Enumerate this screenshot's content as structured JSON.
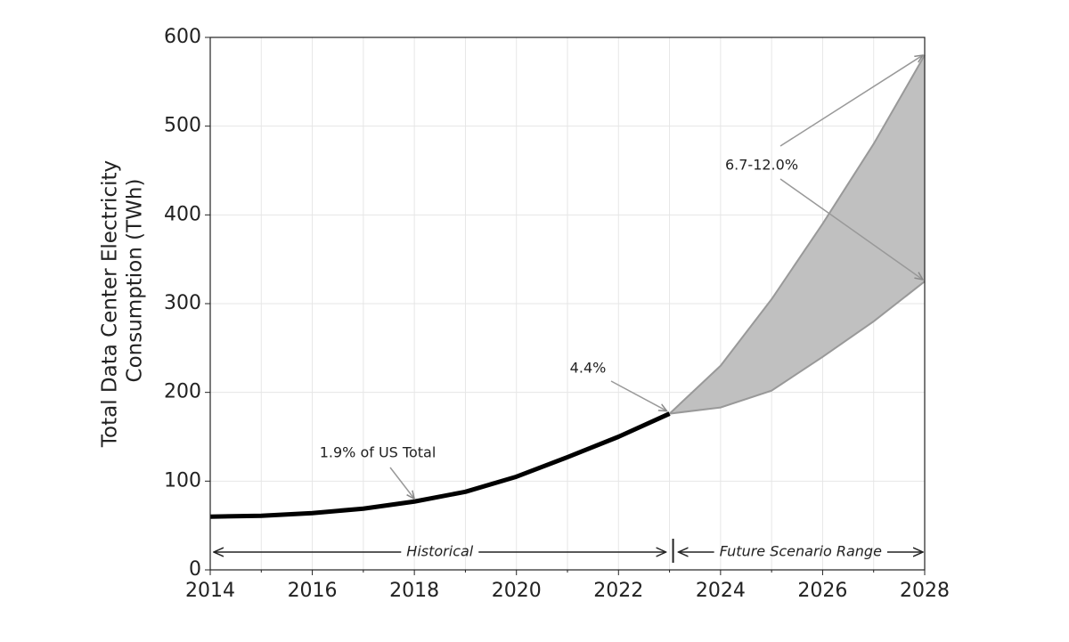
{
  "chart_data": {
    "type": "line",
    "ylabel": [
      "Total Data Center Electricity",
      "Consumption (TWh)"
    ],
    "x": [
      2014,
      2015,
      2016,
      2017,
      2018,
      2019,
      2020,
      2021,
      2022,
      2023,
      2024,
      2025,
      2026,
      2027,
      2028
    ],
    "series": [
      {
        "color": "#000000",
        "values": [
          60,
          61,
          64,
          69,
          77,
          88,
          105,
          127,
          150,
          176,
          null,
          null,
          null,
          null,
          null
        ]
      }
    ],
    "range": {
      "color": "#c0c0c0",
      "edge": "#999999",
      "lower": [
        null,
        null,
        null,
        null,
        null,
        null,
        null,
        null,
        null,
        176,
        183,
        202,
        240,
        280,
        325
      ],
      "upper": [
        null,
        null,
        null,
        null,
        null,
        null,
        null,
        null,
        null,
        176,
        230,
        305,
        390,
        480,
        580
      ]
    },
    "annotations": [
      "1.9% of US Total",
      "4.4%",
      "6.7-12.0%"
    ],
    "spans": [
      "Historical",
      "Future Scenario Range"
    ],
    "xlim": [
      2014,
      2028
    ],
    "xticks": [
      2014,
      2016,
      2018,
      2020,
      2022,
      2024,
      2026,
      2028
    ],
    "xgrid": [
      2015,
      2017,
      2019,
      2021,
      2023,
      2025,
      2027
    ],
    "ylim": [
      0,
      600
    ],
    "yticks": [
      0,
      100,
      200,
      300,
      400,
      500,
      600
    ],
    "grid": true
  }
}
